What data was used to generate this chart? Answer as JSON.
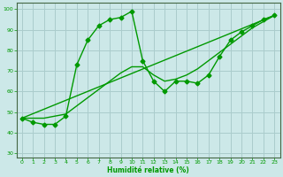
{
  "xlabel": "Humidité relative (%)",
  "background_color": "#cce8e8",
  "grid_color": "#aacccc",
  "line_color": "#009900",
  "xlim": [
    -0.5,
    23.5
  ],
  "ylim": [
    28,
    103
  ],
  "yticks": [
    30,
    40,
    50,
    60,
    70,
    80,
    90,
    100
  ],
  "xticks": [
    0,
    1,
    2,
    3,
    4,
    5,
    6,
    7,
    8,
    9,
    10,
    11,
    12,
    13,
    14,
    15,
    16,
    17,
    18,
    19,
    20,
    21,
    22,
    23
  ],
  "series1_x": [
    0,
    1,
    2,
    3,
    4,
    5,
    6,
    7,
    8,
    9,
    10,
    11,
    12,
    13,
    14,
    15,
    16,
    17,
    18,
    19,
    20,
    21,
    22,
    23
  ],
  "series1_y": [
    47,
    45,
    44,
    44,
    48,
    73,
    85,
    92,
    95,
    96,
    99,
    75,
    65,
    60,
    65,
    65,
    64,
    68,
    77,
    85,
    89,
    92,
    95,
    97
  ],
  "series2_x": [
    0,
    1,
    2,
    3,
    4,
    5,
    6,
    7,
    8,
    9,
    10,
    11,
    12,
    13,
    14,
    15,
    16,
    17,
    18,
    19,
    20,
    21,
    22,
    23
  ],
  "series2_y": [
    47,
    47,
    47,
    48,
    49,
    53,
    57,
    61,
    65,
    69,
    72,
    72,
    68,
    65,
    66,
    68,
    71,
    75,
    79,
    83,
    87,
    91,
    94,
    97
  ],
  "series3_x": [
    0,
    23
  ],
  "series3_y": [
    47,
    97
  ]
}
